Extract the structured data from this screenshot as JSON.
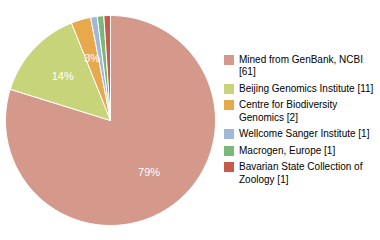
{
  "chart_data": {
    "type": "pie",
    "labels": [
      "Mined from GenBank, NCBI [61]",
      "Beijing Genomics Institute [11]",
      "Centre for Biodiversity\nGenomics [2]",
      "Wellcome Sanger Institute [1]",
      "Macrogen, Europe [1]",
      "Bavarian State Collection of\nZoology [1]"
    ],
    "values": [
      79,
      14,
      3,
      1,
      1,
      1
    ],
    "value_labels": [
      "79%",
      "14%",
      "3%",
      null,
      null,
      null
    ],
    "colors": [
      "#d4998a",
      "#c8d47a",
      "#e8a84c",
      "#a0b8d8",
      "#7ab87a",
      "#c85a4a"
    ],
    "data_labels": true,
    "legend": "right"
  }
}
